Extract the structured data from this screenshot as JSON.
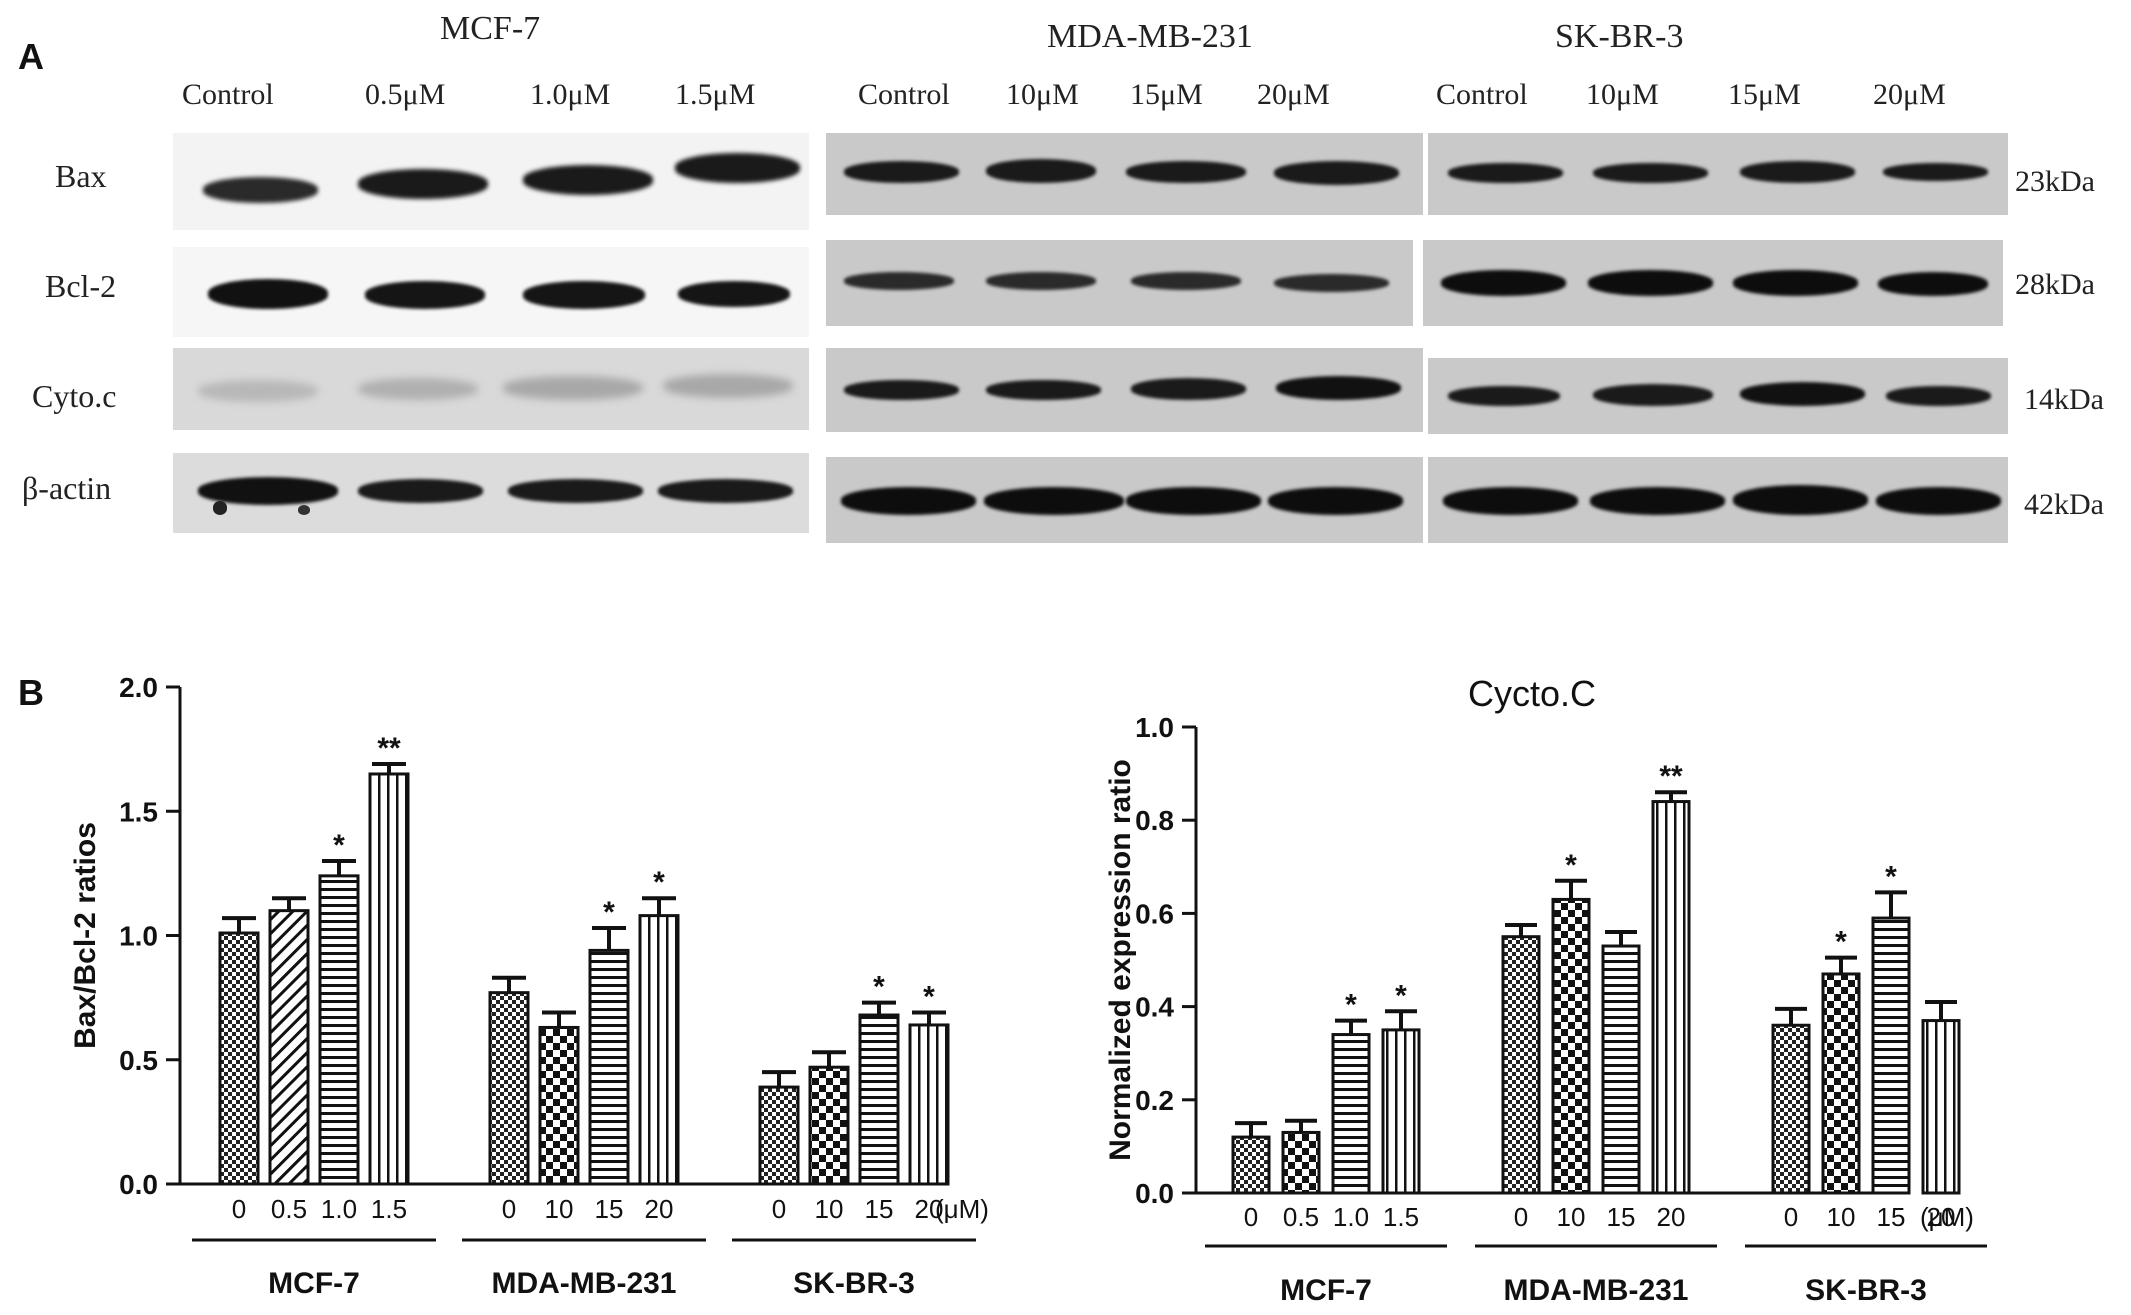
{
  "panelA": {
    "letter": "A",
    "cell_lines": [
      "MCF-7",
      "MDA-MB-231",
      "SK-BR-3"
    ],
    "lanes": [
      [
        "Control",
        "0.5μM",
        "1.0μM",
        "1.5μM"
      ],
      [
        "Control",
        "10μM",
        "15μM",
        "20μM"
      ],
      [
        "Control",
        "10μM",
        "15μM",
        "20μM"
      ]
    ],
    "proteins": [
      "Bax",
      "Bcl-2",
      "Cyto.c",
      "β-actin"
    ],
    "sizes": [
      "23kDa",
      "28kDa",
      "14kDa",
      "42kDa"
    ]
  },
  "panelB": {
    "letter": "B"
  },
  "chart_data": [
    {
      "type": "bar",
      "title": "",
      "ylabel": "Bax/Bcl-2 ratios",
      "xlabel": "",
      "ylim": [
        0,
        2.0
      ],
      "yticks": [
        "0.0",
        "0.5",
        "1.0",
        "1.5",
        "2.0"
      ],
      "unit_label": "(μM)",
      "groups": [
        {
          "name": "MCF-7",
          "categories": [
            "0",
            "0.5",
            "1.0",
            "1.5"
          ],
          "values": [
            1.01,
            1.1,
            1.24,
            1.65
          ],
          "errors": [
            0.06,
            0.05,
            0.06,
            0.04
          ],
          "sig": [
            "",
            "",
            "*",
            "**"
          ]
        },
        {
          "name": "MDA-MB-231",
          "categories": [
            "0",
            "10",
            "15",
            "20"
          ],
          "values": [
            0.77,
            0.63,
            0.94,
            1.08
          ],
          "errors": [
            0.06,
            0.06,
            0.09,
            0.07
          ],
          "sig": [
            "",
            "",
            "*",
            "*"
          ]
        },
        {
          "name": "SK-BR-3",
          "categories": [
            "0",
            "10",
            "15",
            "20"
          ],
          "values": [
            0.39,
            0.47,
            0.68,
            0.64
          ],
          "errors": [
            0.06,
            0.06,
            0.05,
            0.05
          ],
          "sig": [
            "",
            "",
            "*",
            "*"
          ]
        }
      ]
    },
    {
      "type": "bar",
      "title": "Cycto.C",
      "ylabel": "Normalized expression ratio",
      "xlabel": "",
      "ylim": [
        0,
        1.0
      ],
      "yticks": [
        "0.0",
        "0.2",
        "0.4",
        "0.6",
        "0.8",
        "1.0"
      ],
      "unit_label": "(μM)",
      "groups": [
        {
          "name": "MCF-7",
          "categories": [
            "0",
            "0.5",
            "1.0",
            "1.5"
          ],
          "values": [
            0.12,
            0.13,
            0.34,
            0.35
          ],
          "errors": [
            0.03,
            0.025,
            0.03,
            0.04
          ],
          "sig": [
            "",
            "",
            "*",
            "*"
          ]
        },
        {
          "name": "MDA-MB-231",
          "categories": [
            "0",
            "10",
            "15",
            "20"
          ],
          "values": [
            0.55,
            0.63,
            0.53,
            0.84
          ],
          "errors": [
            0.025,
            0.04,
            0.03,
            0.02
          ],
          "sig": [
            "",
            "*",
            "",
            "**"
          ]
        },
        {
          "name": "SK-BR-3",
          "categories": [
            "0",
            "10",
            "15",
            "20"
          ],
          "values": [
            0.36,
            0.47,
            0.59,
            0.37
          ],
          "errors": [
            0.035,
            0.035,
            0.055,
            0.04
          ],
          "sig": [
            "",
            "*",
            "*",
            ""
          ]
        }
      ]
    }
  ]
}
